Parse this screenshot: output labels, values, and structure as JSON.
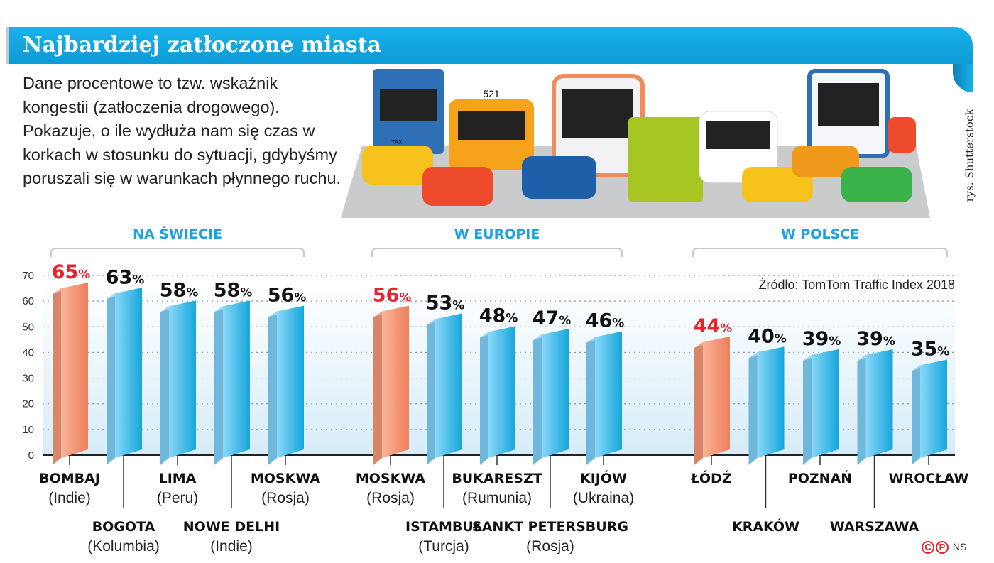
{
  "title": "Najbardziej zatłoczone miasta",
  "description": "Dane procentowe to tzw. wskaźnik kongestii (zatłoczenia drogowego). Pokazuje, o ile wydłuża nam się czas w korkach w stosunku do sytuacji, gdybyśmy poruszali się w warunkach płynnego ruchu.",
  "credit": "rys. Shutterstock",
  "bus_number": "521",
  "taxi_sign": "TAXI",
  "source": "Źródło: TomTom Traffic Index 2018",
  "copyright": {
    "c": "C",
    "p": "P",
    "initials": "NS"
  },
  "colors": {
    "highlight": "#e8232a",
    "bar_blue": "#3bb4e8",
    "bar_orange": "#f4906c",
    "group_title": "#1aa3e0",
    "header": "#12a8e6"
  },
  "chart_data": {
    "type": "bar",
    "unit": "%",
    "ylim": [
      0,
      70
    ],
    "yticks": [
      0,
      10,
      20,
      30,
      40,
      50,
      60,
      70
    ],
    "grid": true,
    "groups": [
      {
        "title": "NA ŚWIECIE",
        "categories": [
          {
            "city": "BOMBAJ",
            "country": "(Indie)",
            "value": 65,
            "highlight": true
          },
          {
            "city": "BOGOTA",
            "country": "(Kolumbia)",
            "value": 63
          },
          {
            "city": "LIMA",
            "country": "(Peru)",
            "value": 58
          },
          {
            "city": "NOWE DELHI",
            "country": "(Indie)",
            "value": 58
          },
          {
            "city": "MOSKWA",
            "country": "(Rosja)",
            "value": 56
          }
        ]
      },
      {
        "title": "W EUROPIE",
        "categories": [
          {
            "city": "MOSKWA",
            "country": "(Rosja)",
            "value": 56,
            "highlight": true
          },
          {
            "city": "ISTAMBUŁ",
            "country": "(Turcja)",
            "value": 53
          },
          {
            "city": "BUKARESZT",
            "country": "(Rumunia)",
            "value": 48
          },
          {
            "city": "SANKT PETERSBURG",
            "country": "(Rosja)",
            "value": 47
          },
          {
            "city": "KIJÓW",
            "country": "(Ukraina)",
            "value": 46
          }
        ]
      },
      {
        "title": "W POLSCE",
        "categories": [
          {
            "city": "ŁÓDŹ",
            "country": "",
            "value": 44,
            "highlight": true
          },
          {
            "city": "KRAKÓW",
            "country": "",
            "value": 40
          },
          {
            "city": "POZNAŃ",
            "country": "",
            "value": 39
          },
          {
            "city": "WARSZAWA",
            "country": "",
            "value": 39
          },
          {
            "city": "WROCŁAW",
            "country": "",
            "value": 35
          }
        ]
      }
    ]
  }
}
